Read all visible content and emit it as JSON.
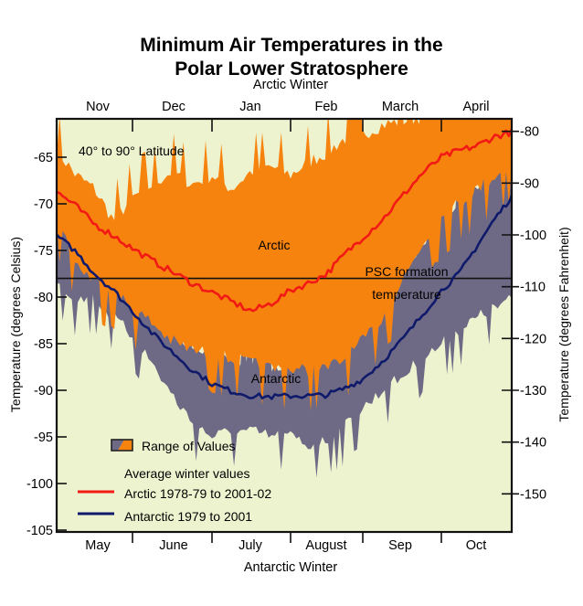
{
  "chart_data": {
    "type": "area",
    "title_line1": "Minimum Air Temperatures in the",
    "title_line2": "Polar Lower Stratosphere",
    "top_axis_title": "Arctic  Winter",
    "bottom_axis_title": "Antarctic Winter",
    "ylabel": "Temperature (degrees Celsius)",
    "ylabel_right": "Temperature (degrees Fahrenheit)",
    "top_months": [
      "Nov",
      "Dec",
      "Jan",
      "Feb",
      "March",
      "April"
    ],
    "bottom_months": [
      "May",
      "June",
      "July",
      "August",
      "Sep",
      "Oct"
    ],
    "ylim": [
      -105,
      -60.9
    ],
    "yticks": [
      -65,
      -70,
      -75,
      -80,
      -85,
      -90,
      -95,
      -100,
      -105
    ],
    "ytick_labels": [
      "-65",
      "-70",
      "-75",
      "-80",
      "-85",
      "-90",
      "-95",
      "-100",
      "-105"
    ],
    "yticks_right_f": [
      -80,
      -90,
      -100,
      -110,
      -120,
      -130,
      -140,
      -150
    ],
    "ytick_right_labels": [
      "-80",
      "-90",
      "-100",
      "-110",
      "-120",
      "-130",
      "-140",
      "-150"
    ],
    "x_units": "months since start of winter (0 = Nov 1 / May 1, 6 = end of Apr / Oct)",
    "x": [
      0,
      0.25,
      0.5,
      0.75,
      1,
      1.25,
      1.5,
      1.75,
      2,
      2.25,
      2.5,
      2.75,
      3,
      3.25,
      3.5,
      3.75,
      4,
      4.25,
      4.5,
      4.75,
      5,
      5.25,
      5.5,
      5.75,
      6
    ],
    "psc_temperature": -78,
    "psc_label_line1": "PSC formation",
    "psc_label_line2": "temperature",
    "region_label": "40° to 90° Latitude",
    "series": [
      {
        "name": "Arctic range max",
        "color": "#f7830f",
        "values": [
          -65,
          -67.7,
          -69.2,
          -72.6,
          -70.2,
          -68.7,
          -67.3,
          -68.7,
          -67.7,
          -69.2,
          -67.3,
          -66.8,
          -67.7,
          -66.3,
          -65.3,
          -63.8,
          -63.3,
          -62.3,
          -61.9,
          -61.4,
          -60.9,
          -60.9,
          -60.9,
          -60.9,
          -60.9
        ]
      },
      {
        "name": "Arctic range min",
        "color": "#f7830f",
        "values": [
          -70.7,
          -75.6,
          -77.5,
          -78.5,
          -80.5,
          -82,
          -84,
          -84.9,
          -85.4,
          -85.9,
          -86.4,
          -86.9,
          -86.9,
          -87.2,
          -86.9,
          -85.9,
          -84,
          -81.5,
          -77.5,
          -73.6,
          -70.7,
          -69.2,
          -67.7,
          -66.3,
          -65.3
        ]
      },
      {
        "name": "Antarctic range max",
        "color": "#6e6a86",
        "values": [
          -71.2,
          -73.1,
          -76.1,
          -78.5,
          -80.5,
          -82,
          -84.4,
          -85.9,
          -86.9,
          -87.4,
          -87.8,
          -88.3,
          -87.8,
          -87.8,
          -86.4,
          -84.4,
          -82,
          -79.5,
          -77.5,
          -75.1,
          -72.6,
          -70.7,
          -68.7,
          -66.3,
          -65.6
        ]
      },
      {
        "name": "Antarctic range min",
        "color": "#6e6a86",
        "values": [
          -77.5,
          -79.5,
          -79.5,
          -81.5,
          -83.4,
          -86.4,
          -89.8,
          -92.7,
          -94.2,
          -93.7,
          -93.7,
          -94.2,
          -94.2,
          -95.2,
          -94.7,
          -93.2,
          -91.2,
          -89.3,
          -87.8,
          -85.9,
          -84.4,
          -82.9,
          -81.5,
          -80.5,
          -79.5
        ]
      },
      {
        "name": "Arctic 1978-79 to 2001-02",
        "color": "#f21a14",
        "values": [
          -68.7,
          -70.2,
          -72.2,
          -73.4,
          -74.8,
          -76.1,
          -77.3,
          -78.5,
          -79.5,
          -80.5,
          -81.5,
          -80.7,
          -79.3,
          -78.5,
          -77.5,
          -75.4,
          -73.6,
          -71.7,
          -69.2,
          -66.8,
          -65,
          -64.3,
          -63.8,
          -62.8,
          -62.3
        ]
      },
      {
        "name": "Antarctic 1979 to 2001",
        "color": "#101a6a",
        "values": [
          -73.4,
          -75.1,
          -77.5,
          -79.3,
          -81.5,
          -83.9,
          -85.9,
          -87.8,
          -89.3,
          -90.1,
          -90.6,
          -90.7,
          -90.6,
          -90.6,
          -90.5,
          -89.8,
          -88.8,
          -86.9,
          -84.6,
          -82,
          -79.3,
          -77.5,
          -74.6,
          -71.7,
          -69.2
        ]
      }
    ],
    "area_labels": {
      "arctic": "Arctic",
      "antarctic": "Antarctic"
    },
    "legend": {
      "range_label": "Range of Values",
      "avg_heading": "Average winter values",
      "arctic_label": "Arctic 1978-79 to 2001-02",
      "antarctic_label": "Antarctic 1979 to 2001"
    },
    "colors": {
      "background": "#eef3cf",
      "arctic_band": "#f7830f",
      "antarctic_band": "#6e6a86",
      "arctic_line": "#f21a14",
      "antarctic_line": "#101a6a"
    }
  }
}
